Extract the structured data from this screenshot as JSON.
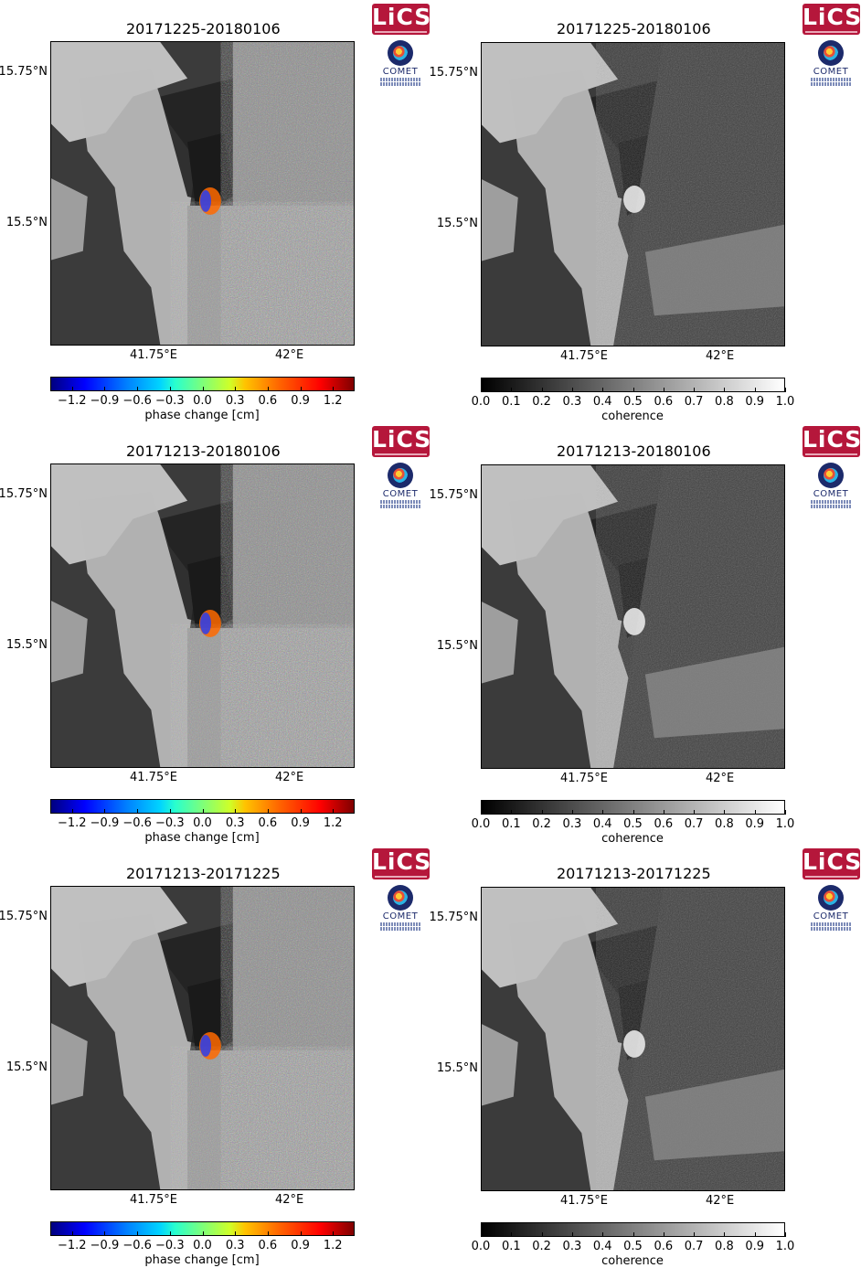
{
  "figure": {
    "logos": {
      "lics_text": "LiCS",
      "comet_text": "COMET"
    },
    "panels": [
      {
        "title": "20171225-20180106",
        "type": "phase",
        "y_ticks": [
          "15.75°N",
          "15.5°N"
        ],
        "x_ticks": [
          "41.75°E",
          "42°E"
        ],
        "colorbar": {
          "ticks": [
            "−1.2",
            "−0.9",
            "−0.6",
            "−0.3",
            "0.0",
            "0.3",
            "0.6",
            "0.9",
            "1.2"
          ],
          "label": "phase change [cm]"
        }
      },
      {
        "title": "20171225-20180106",
        "type": "coherence",
        "y_ticks": [
          "15.75°N",
          "15.5°N"
        ],
        "x_ticks": [
          "41.75°E",
          "42°E"
        ],
        "colorbar": {
          "ticks": [
            "0.0",
            "0.1",
            "0.2",
            "0.3",
            "0.4",
            "0.5",
            "0.6",
            "0.7",
            "0.8",
            "0.9",
            "1.0"
          ],
          "label": "coherence"
        }
      },
      {
        "title": "20171213-20180106",
        "type": "phase",
        "y_ticks": [
          "15.75°N",
          "15.5°N"
        ],
        "x_ticks": [
          "41.75°E",
          "42°E"
        ],
        "colorbar": {
          "ticks": [
            "−1.2",
            "−0.9",
            "−0.6",
            "−0.3",
            "0.0",
            "0.3",
            "0.6",
            "0.9",
            "1.2"
          ],
          "label": "phase change [cm]"
        }
      },
      {
        "title": "20171213-20180106",
        "type": "coherence",
        "y_ticks": [
          "15.75°N",
          "15.5°N"
        ],
        "x_ticks": [
          "41.75°E",
          "42°E"
        ],
        "colorbar": {
          "ticks": [
            "0.0",
            "0.1",
            "0.2",
            "0.3",
            "0.4",
            "0.5",
            "0.6",
            "0.7",
            "0.8",
            "0.9",
            "1.0"
          ],
          "label": "coherence"
        }
      },
      {
        "title": "20171213-20171225",
        "type": "phase",
        "y_ticks": [
          "15.75°N",
          "15.5°N"
        ],
        "x_ticks": [
          "41.75°E",
          "42°E"
        ],
        "colorbar": {
          "ticks": [
            "−1.2",
            "−0.9",
            "−0.6",
            "−0.3",
            "0.0",
            "0.3",
            "0.6",
            "0.9",
            "1.2"
          ],
          "label": "phase change [cm]"
        }
      },
      {
        "title": "20171213-20171225",
        "type": "coherence",
        "y_ticks": [
          "15.75°N",
          "15.5°N"
        ],
        "x_ticks": [
          "41.75°E",
          "42°E"
        ],
        "colorbar": {
          "ticks": [
            "0.0",
            "0.1",
            "0.2",
            "0.3",
            "0.4",
            "0.5",
            "0.6",
            "0.7",
            "0.8",
            "0.9",
            "1.0"
          ],
          "label": "coherence"
        }
      }
    ]
  },
  "chart_data": [
    {
      "type": "heatmap",
      "title": "20171225-20180106",
      "colorbar_label": "phase change [cm]",
      "colorbar_range": [
        -1.4,
        1.4
      ],
      "x_ticks": [
        "41.75°E",
        "42°E"
      ],
      "y_ticks": [
        "15.75°N",
        "15.5°N"
      ]
    },
    {
      "type": "heatmap",
      "title": "20171225-20180106",
      "colorbar_label": "coherence",
      "colorbar_range": [
        0.0,
        1.0
      ],
      "x_ticks": [
        "41.75°E",
        "42°E"
      ],
      "y_ticks": [
        "15.75°N",
        "15.5°N"
      ]
    },
    {
      "type": "heatmap",
      "title": "20171213-20180106",
      "colorbar_label": "phase change [cm]",
      "colorbar_range": [
        -1.4,
        1.4
      ],
      "x_ticks": [
        "41.75°E",
        "42°E"
      ],
      "y_ticks": [
        "15.75°N",
        "15.5°N"
      ]
    },
    {
      "type": "heatmap",
      "title": "20171213-20180106",
      "colorbar_label": "coherence",
      "colorbar_range": [
        0.0,
        1.0
      ],
      "x_ticks": [
        "41.75°E",
        "42°E"
      ],
      "y_ticks": [
        "15.75°N",
        "15.5°N"
      ]
    },
    {
      "type": "heatmap",
      "title": "20171213-20171225",
      "colorbar_label": "phase change [cm]",
      "colorbar_range": [
        -1.4,
        1.4
      ],
      "x_ticks": [
        "41.75°E",
        "42°E"
      ],
      "y_ticks": [
        "15.75°N",
        "15.5°N"
      ]
    },
    {
      "type": "heatmap",
      "title": "20171213-20171225",
      "colorbar_label": "coherence",
      "colorbar_range": [
        0.0,
        1.0
      ],
      "x_ticks": [
        "41.75°E",
        "42°E"
      ],
      "y_ticks": [
        "15.75°N",
        "15.5°N"
      ]
    }
  ]
}
